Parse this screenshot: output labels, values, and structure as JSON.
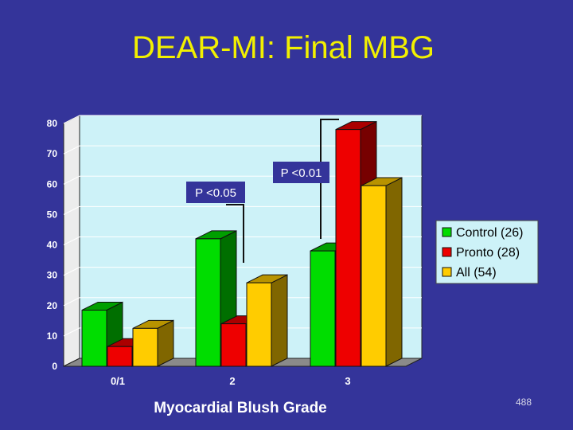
{
  "slide": {
    "title": "DEAR-MI: Final MBG",
    "page_number": "488"
  },
  "colors": {
    "background": "#34349a",
    "plot_area": "#cdf2f8",
    "title": "#f2f000",
    "control": "#00dd00",
    "pronto": "#ee0000",
    "all": "#ffcc00"
  },
  "chart_data": {
    "type": "bar",
    "style": "3d-clustered-column",
    "categories": [
      "0/1",
      "2",
      "3"
    ],
    "series": [
      {
        "name": "Control (26)",
        "values": [
          18.5,
          42,
          38
        ],
        "color": "#00dd00"
      },
      {
        "name": "Pronto (28)",
        "values": [
          6.5,
          14,
          78
        ],
        "color": "#ee0000"
      },
      {
        "name": "All (54)",
        "values": [
          12.5,
          27.5,
          59.5
        ],
        "color": "#ffcc00"
      }
    ],
    "xlabel": "Myocardial Blush Grade",
    "ylabel": "",
    "ylim": [
      0,
      80
    ],
    "yticks": [
      0,
      10,
      20,
      30,
      40,
      50,
      60,
      70,
      80
    ],
    "grid": true,
    "legend": "right",
    "annotations": [
      {
        "text": "P <0.05",
        "category": "2"
      },
      {
        "text": "P <0.01",
        "category": "3"
      }
    ]
  }
}
